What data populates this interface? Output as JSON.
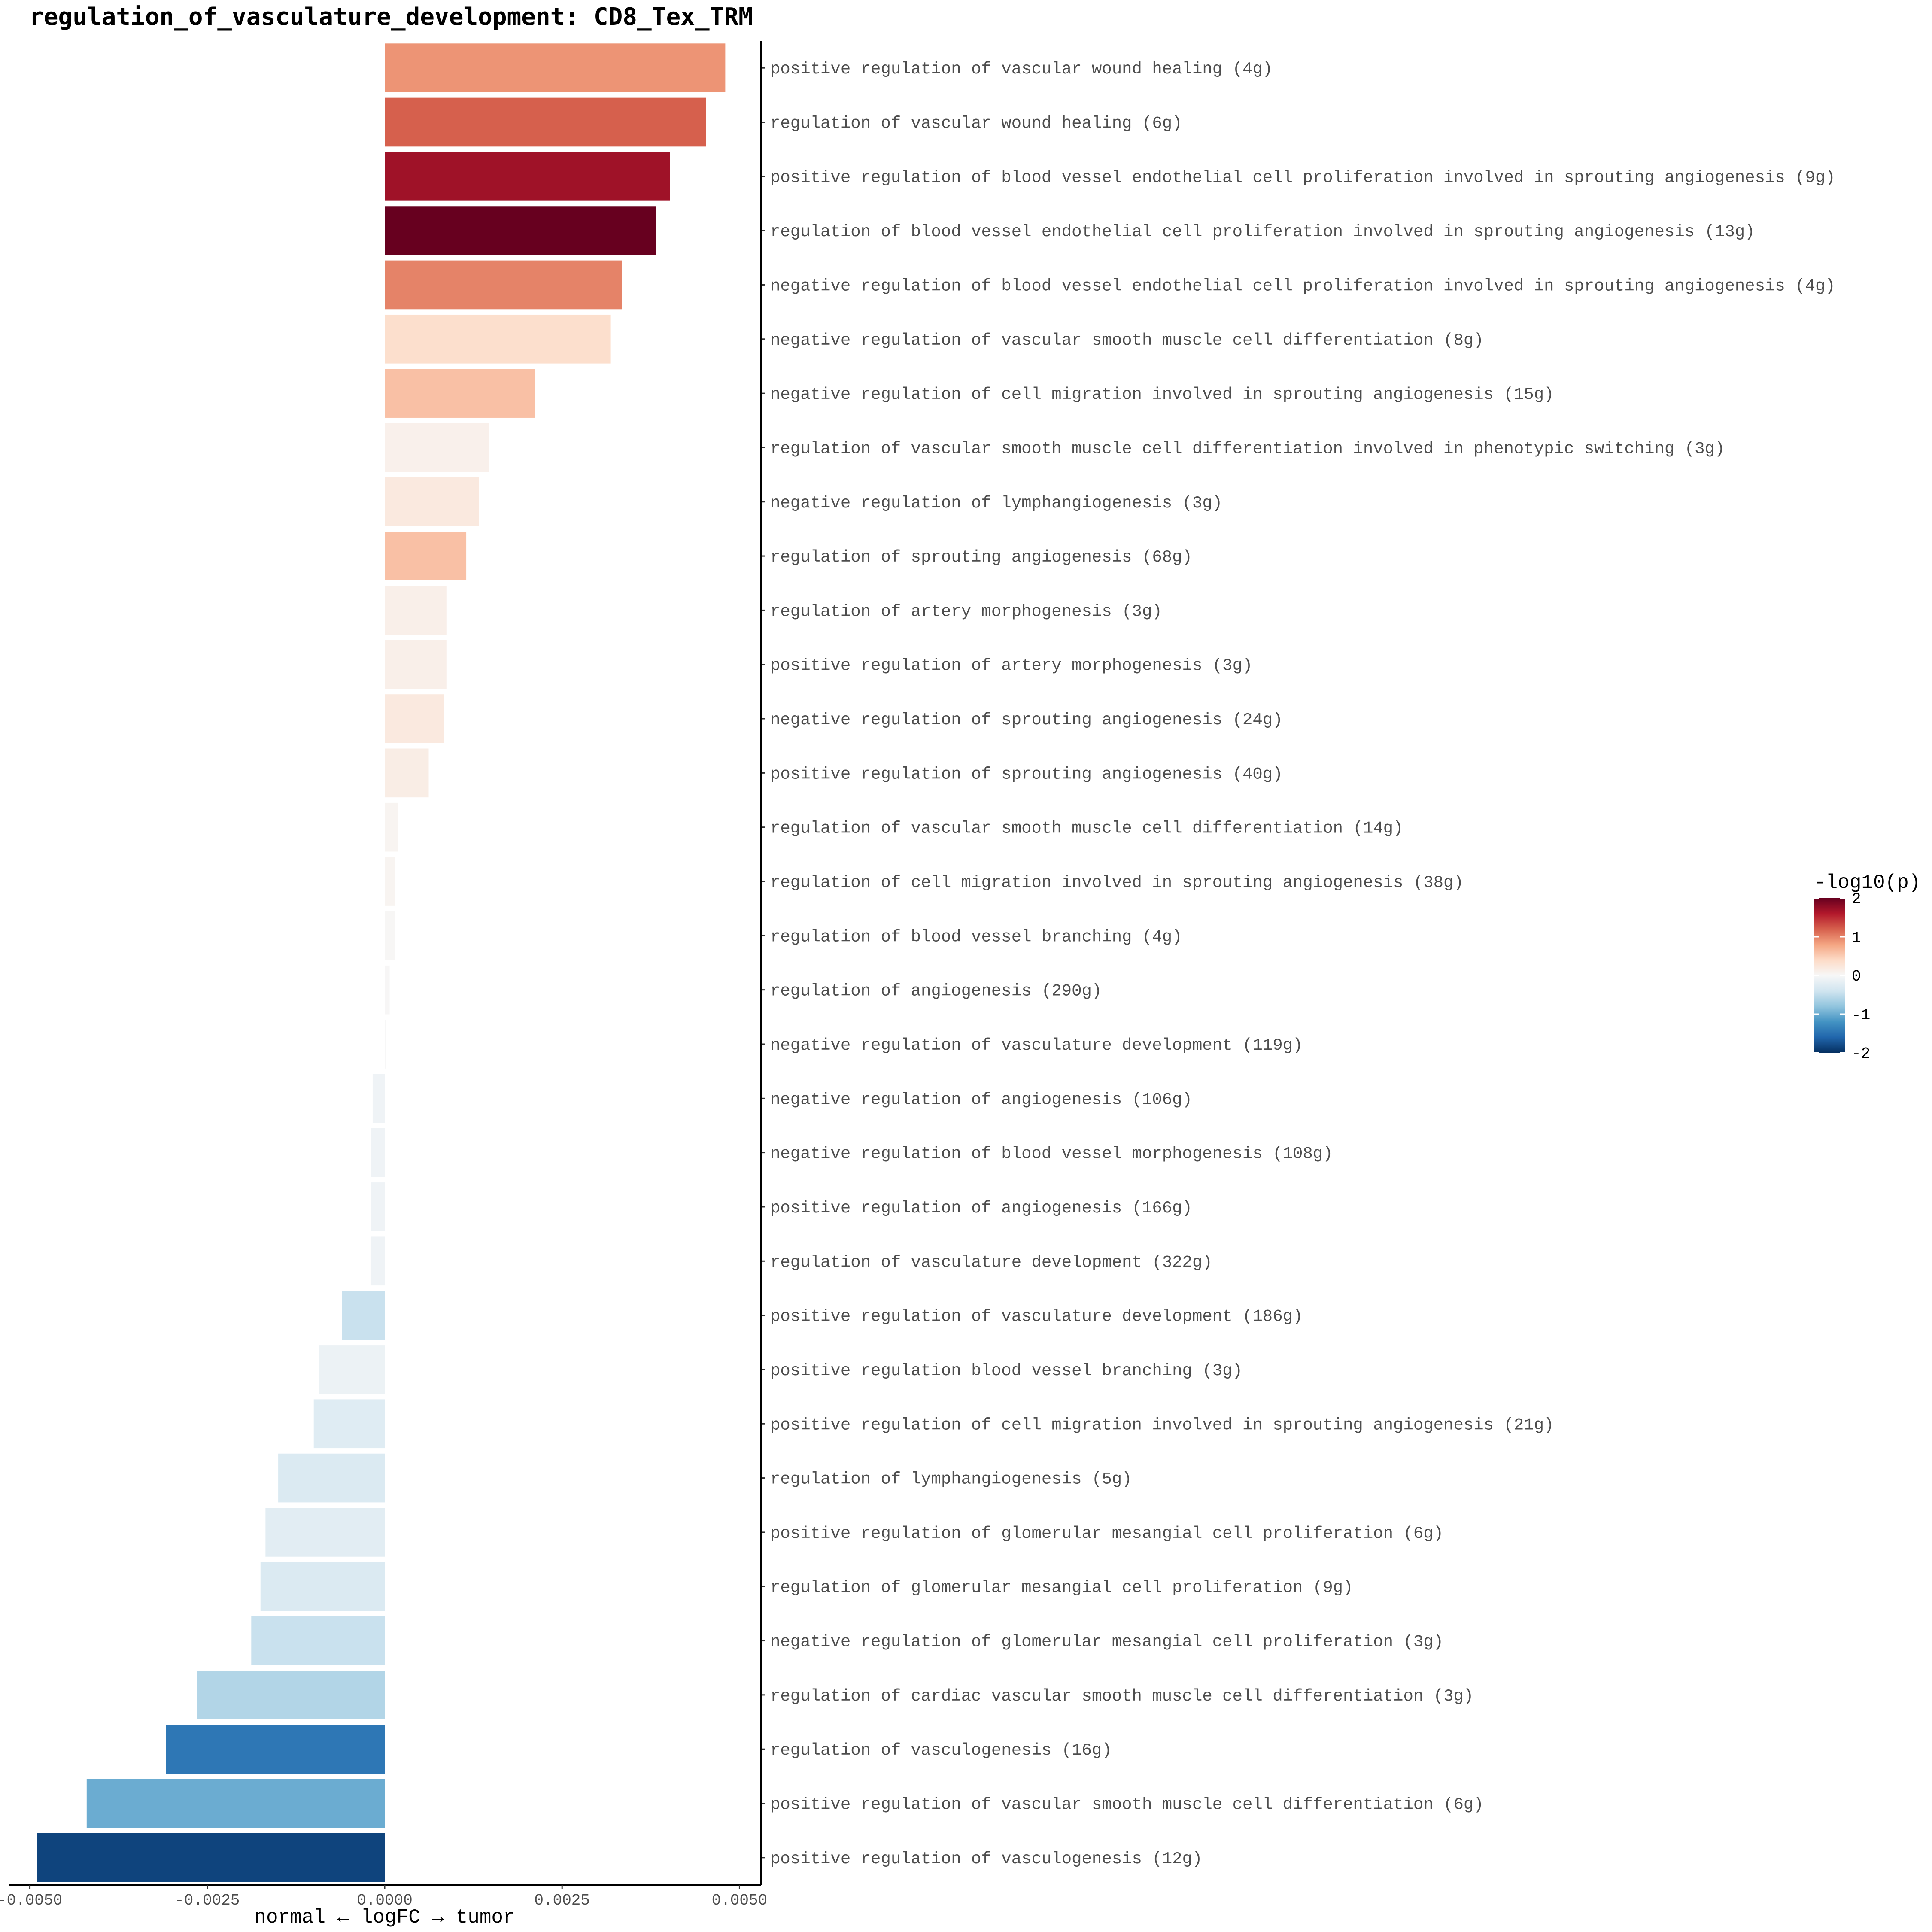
{
  "chart_data": {
    "type": "bar",
    "orientation": "horizontal",
    "title": "regulation_of_vasculature_development: CD8_Tex_TRM",
    "xlabel": "normal ← logFC → tumor",
    "xlim": [
      -0.0053,
      0.0053
    ],
    "xticks": [
      -0.005,
      -0.0025,
      0,
      0.0025,
      0.005
    ],
    "xtick_labels": [
      "-0.0050",
      "-0.0025",
      "0.0000",
      "0.0025",
      "0.0050"
    ],
    "color_scale": {
      "title": "-log10(p)",
      "min": -2,
      "max": 2,
      "ticks": [
        2,
        1,
        0,
        -1,
        -2
      ],
      "tick_labels": [
        "2",
        "1",
        "0",
        "-1",
        "-2"
      ],
      "colors": [
        "#053061",
        "#2166ac",
        "#4393c3",
        "#92c5de",
        "#d1e5f0",
        "#f7f7f7",
        "#fddbc7",
        "#f4a582",
        "#d6604d",
        "#b2182b",
        "#67001f"
      ]
    },
    "categories": [
      "positive regulation of vascular wound healing (4g)",
      "regulation of vascular wound healing (6g)",
      "positive regulation of blood vessel endothelial cell proliferation involved in sprouting angiogenesis (9g)",
      "regulation of blood vessel endothelial cell proliferation involved in sprouting angiogenesis (13g)",
      "negative regulation of blood vessel endothelial cell proliferation involved in sprouting angiogenesis (4g)",
      "negative regulation of vascular smooth muscle cell differentiation (8g)",
      "negative regulation of cell migration involved in sprouting angiogenesis (15g)",
      "regulation of vascular smooth muscle cell differentiation involved in phenotypic switching (3g)",
      "negative regulation of lymphangiogenesis (3g)",
      "regulation of sprouting angiogenesis (68g)",
      "regulation of artery morphogenesis (3g)",
      "positive regulation of artery morphogenesis (3g)",
      "negative regulation of sprouting angiogenesis (24g)",
      "positive regulation of sprouting angiogenesis (40g)",
      "regulation of vascular smooth muscle cell differentiation (14g)",
      "regulation of cell migration involved in sprouting angiogenesis (38g)",
      "regulation of blood vessel branching (4g)",
      "regulation of angiogenesis (290g)",
      "negative regulation of vasculature development (119g)",
      "negative regulation of angiogenesis (106g)",
      "negative regulation of blood vessel morphogenesis (108g)",
      "positive regulation of angiogenesis (166g)",
      "regulation of vasculature development (322g)",
      "positive regulation of vasculature development (186g)",
      "positive regulation blood vessel branching (3g)",
      "positive regulation of cell migration involved in sprouting angiogenesis (21g)",
      "regulation of lymphangiogenesis (5g)",
      "positive regulation of glomerular mesangial cell proliferation (6g)",
      "regulation of glomerular mesangial cell proliferation (9g)",
      "negative regulation of glomerular mesangial cell proliferation (3g)",
      "regulation of cardiac vascular smooth muscle cell differentiation (3g)",
      "regulation of vasculogenesis (16g)",
      "positive regulation of vascular smooth muscle cell differentiation (6g)",
      "positive regulation of vasculogenesis (12g)"
    ],
    "values": [
      0.0048,
      0.00453,
      0.00402,
      0.00382,
      0.00334,
      0.00318,
      0.00212,
      0.00147,
      0.00133,
      0.00115,
      0.00087,
      0.00087,
      0.00084,
      0.00062,
      0.00019,
      0.00015,
      0.00015,
      7e-05,
      2e-05,
      -0.00017,
      -0.00019,
      -0.00019,
      -0.0002,
      -0.0006,
      -0.00092,
      -0.001,
      -0.0015,
      -0.00168,
      -0.00175,
      -0.00188,
      -0.00265,
      -0.00308,
      -0.0042,
      -0.0049
    ],
    "neg_log10_p": [
      0.9,
      1.2,
      1.7,
      2.3,
      1.0,
      0.35,
      0.6,
      0.1,
      0.2,
      0.6,
      0.12,
      0.12,
      0.2,
      0.15,
      0.05,
      0.05,
      0.02,
      0.01,
      0.0,
      -0.08,
      -0.08,
      -0.08,
      -0.08,
      -0.45,
      -0.12,
      -0.25,
      -0.3,
      -0.22,
      -0.3,
      -0.45,
      -0.6,
      -1.45,
      -1.0,
      -1.85
    ]
  }
}
